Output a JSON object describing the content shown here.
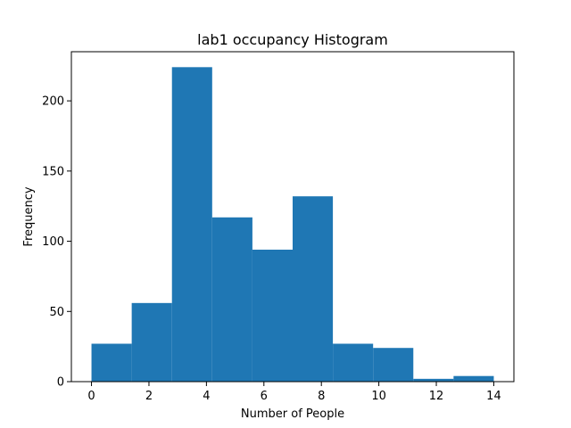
{
  "chart_data": {
    "type": "bar",
    "title": "lab1 occupancy Histogram",
    "xlabel": "Number of People",
    "ylabel": "Frequency",
    "bin_edges": [
      0,
      1.4,
      2.8,
      4.2,
      5.6,
      7.0,
      8.4,
      9.8,
      11.2,
      12.6,
      14.0
    ],
    "values": [
      27,
      56,
      224,
      117,
      94,
      132,
      27,
      24,
      2,
      4
    ],
    "xlim": [
      -0.7,
      14.7
    ],
    "ylim": [
      0,
      235
    ],
    "xticks": [
      0,
      2,
      4,
      6,
      8,
      10,
      12,
      14
    ],
    "yticks": [
      0,
      50,
      100,
      150,
      200
    ],
    "grid": false,
    "legend": "none",
    "bar_color": "#1f77b4"
  }
}
